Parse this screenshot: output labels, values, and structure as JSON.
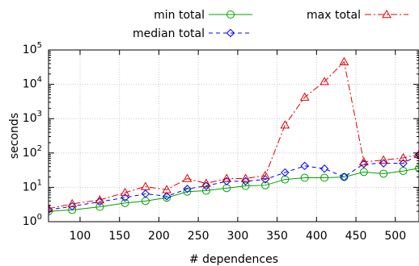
{
  "chart_data": {
    "type": "line",
    "xlabel": "# dependences",
    "ylabel": "seconds",
    "xlim": [
      60,
      530
    ],
    "ylim": [
      1,
      100000
    ],
    "yscale": "log",
    "x_ticks": [
      100,
      150,
      200,
      250,
      300,
      350,
      400,
      450,
      500
    ],
    "y_ticks": [
      {
        "value": 1,
        "base": "10",
        "exp": "0"
      },
      {
        "value": 10,
        "base": "10",
        "exp": "1"
      },
      {
        "value": 100,
        "base": "10",
        "exp": "2"
      },
      {
        "value": 1000,
        "base": "10",
        "exp": "3"
      },
      {
        "value": 10000,
        "base": "10",
        "exp": "4"
      },
      {
        "value": 100000,
        "base": "10",
        "exp": "5"
      }
    ],
    "legend_position": "top",
    "x": [
      60,
      90,
      125,
      157,
      183,
      210,
      236,
      260,
      286,
      310,
      335,
      360,
      385,
      410,
      435,
      460,
      485,
      510,
      530
    ],
    "series": [
      {
        "name": "min total",
        "color": "#00a000",
        "dash": "",
        "marker": "circle",
        "values": [
          2.0,
          2.2,
          2.7,
          3.5,
          4.0,
          5.0,
          7.5,
          8.0,
          9.5,
          11,
          11.5,
          17,
          19,
          19,
          20,
          28,
          25,
          30,
          36
        ]
      },
      {
        "name": "median total",
        "color": "#0000ff",
        "dash": "5,4",
        "marker": "diamond",
        "values": [
          2.2,
          2.8,
          3.8,
          5.0,
          6.5,
          5.5,
          9.0,
          11,
          15,
          15,
          17,
          27,
          42,
          35,
          20,
          48,
          50,
          50,
          90
        ]
      },
      {
        "name": "max total",
        "color": "#e00000",
        "dash": "8,3,2,3",
        "marker": "triangle",
        "values": [
          2.4,
          3.3,
          4.3,
          7.0,
          10.5,
          8.5,
          18,
          13,
          18,
          18,
          22,
          650,
          4200,
          12000,
          45000,
          55,
          62,
          72,
          90
        ]
      }
    ]
  }
}
